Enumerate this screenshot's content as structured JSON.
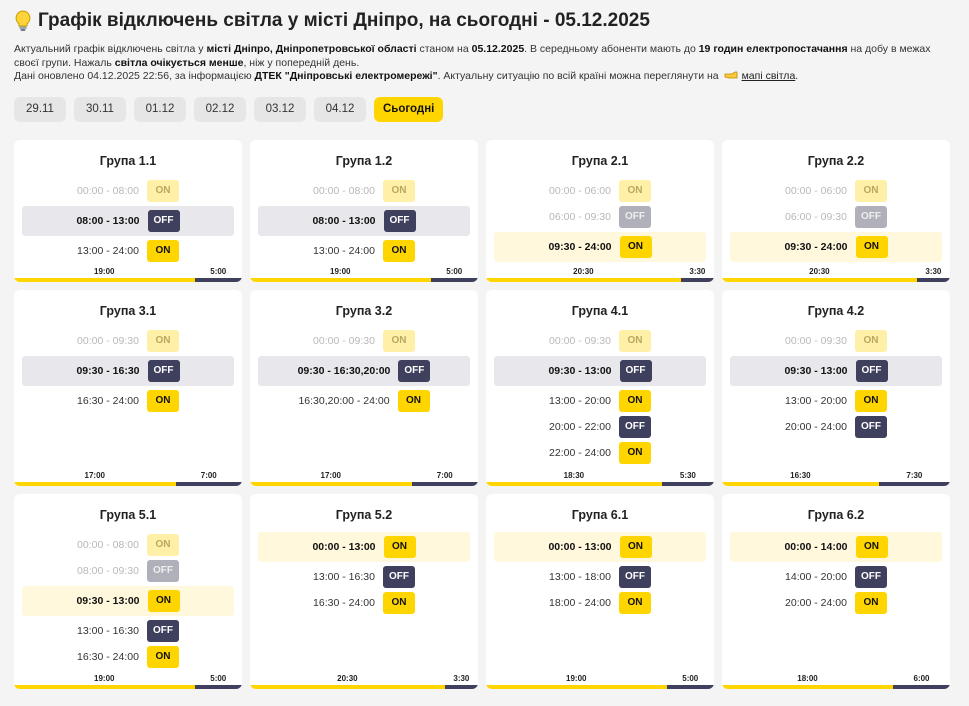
{
  "header": {
    "title": "Графік відключень світла у місті Дніпро, на сьогодні - 05.12.2025"
  },
  "description": {
    "lines": [
      [
        {
          "text": "Актуальний графік відключень світла у "
        },
        {
          "text": "місті Дніпро, Дніпропетровської області",
          "style": "bold"
        },
        {
          "text": " станом на "
        },
        {
          "text": "05.12.2025",
          "style": "bold"
        },
        {
          "text": ". В середньому абоненти мають до "
        },
        {
          "text": "19 годин електропостачання",
          "style": "bold"
        },
        {
          "text": " на добу в межах своєї групи. Нажаль "
        },
        {
          "text": "світла очікується менше",
          "style": "bold"
        },
        {
          "text": ", ніж у попередній день."
        }
      ],
      [
        {
          "text": "Дані оновлено 04.12.2025 22:56, за інформацією "
        },
        {
          "text": "ДТЕК \"Дніпровські електромережі\"",
          "style": "bold"
        },
        {
          "text": ". Актуальну ситуацію по всій країні можна переглянути на "
        },
        {
          "text": "мапі світла",
          "style": "link"
        },
        {
          "text": "."
        }
      ]
    ]
  },
  "tabs": [
    {
      "label": "29.11"
    },
    {
      "label": "30.11"
    },
    {
      "label": "01.12"
    },
    {
      "label": "02.12"
    },
    {
      "label": "03.12"
    },
    {
      "label": "04.12"
    },
    {
      "label": "Сьогодні",
      "active": true
    }
  ],
  "groups": [
    {
      "name": "Група 1.1",
      "on": "19:00",
      "off": "5:00",
      "slots": [
        {
          "time": "00:00 - 08:00",
          "status": "ON",
          "state": "past"
        },
        {
          "time": "08:00 - 13:00",
          "status": "OFF",
          "state": "current"
        },
        {
          "time": "13:00 - 24:00",
          "status": "ON",
          "state": "future"
        }
      ]
    },
    {
      "name": "Група 1.2",
      "on": "19:00",
      "off": "5:00",
      "slots": [
        {
          "time": "00:00 - 08:00",
          "status": "ON",
          "state": "past"
        },
        {
          "time": "08:00 - 13:00",
          "status": "OFF",
          "state": "current"
        },
        {
          "time": "13:00 - 24:00",
          "status": "ON",
          "state": "future"
        }
      ]
    },
    {
      "name": "Група 2.1",
      "on": "20:30",
      "off": "3:30",
      "slots": [
        {
          "time": "00:00 - 06:00",
          "status": "ON",
          "state": "past"
        },
        {
          "time": "06:00 - 09:30",
          "status": "OFF",
          "state": "past"
        },
        {
          "time": "09:30 - 24:00",
          "status": "ON",
          "state": "current"
        }
      ]
    },
    {
      "name": "Група 2.2",
      "on": "20:30",
      "off": "3:30",
      "slots": [
        {
          "time": "00:00 - 06:00",
          "status": "ON",
          "state": "past"
        },
        {
          "time": "06:00 - 09:30",
          "status": "OFF",
          "state": "past"
        },
        {
          "time": "09:30 - 24:00",
          "status": "ON",
          "state": "current"
        }
      ]
    },
    {
      "name": "Група 3.1",
      "on": "17:00",
      "off": "7:00",
      "slots": [
        {
          "time": "00:00 - 09:30",
          "status": "ON",
          "state": "past"
        },
        {
          "time": "09:30 - 16:30",
          "status": "OFF",
          "state": "current"
        },
        {
          "time": "16:30 - 24:00",
          "status": "ON",
          "state": "future"
        }
      ]
    },
    {
      "name": "Група 3.2",
      "on": "17:00",
      "off": "7:00",
      "slots": [
        {
          "time": "00:00 - 09:30",
          "status": "ON",
          "state": "past"
        },
        {
          "time": "09:30 - 16:30,20:00",
          "status": "OFF",
          "state": "current"
        },
        {
          "time": "16:30,20:00 - 24:00",
          "status": "ON",
          "state": "future"
        }
      ]
    },
    {
      "name": "Група 4.1",
      "on": "18:30",
      "off": "5:30",
      "slots": [
        {
          "time": "00:00 - 09:30",
          "status": "ON",
          "state": "past"
        },
        {
          "time": "09:30 - 13:00",
          "status": "OFF",
          "state": "current"
        },
        {
          "time": "13:00 - 20:00",
          "status": "ON",
          "state": "future"
        },
        {
          "time": "20:00 - 22:00",
          "status": "OFF",
          "state": "future"
        },
        {
          "time": "22:00 - 24:00",
          "status": "ON",
          "state": "future"
        }
      ]
    },
    {
      "name": "Група 4.2",
      "on": "16:30",
      "off": "7:30",
      "slots": [
        {
          "time": "00:00 - 09:30",
          "status": "ON",
          "state": "past"
        },
        {
          "time": "09:30 - 13:00",
          "status": "OFF",
          "state": "current"
        },
        {
          "time": "13:00 - 20:00",
          "status": "ON",
          "state": "future"
        },
        {
          "time": "20:00 - 24:00",
          "status": "OFF",
          "state": "future"
        }
      ]
    },
    {
      "name": "Група 5.1",
      "on": "19:00",
      "off": "5:00",
      "slots": [
        {
          "time": "00:00 - 08:00",
          "status": "ON",
          "state": "past"
        },
        {
          "time": "08:00 - 09:30",
          "status": "OFF",
          "state": "past"
        },
        {
          "time": "09:30 - 13:00",
          "status": "ON",
          "state": "current"
        },
        {
          "time": "13:00 - 16:30",
          "status": "OFF",
          "state": "future"
        },
        {
          "time": "16:30 - 24:00",
          "status": "ON",
          "state": "future"
        }
      ]
    },
    {
      "name": "Група 5.2",
      "on": "20:30",
      "off": "3:30",
      "slots": [
        {
          "time": "00:00 - 13:00",
          "status": "ON",
          "state": "current"
        },
        {
          "time": "13:00 - 16:30",
          "status": "OFF",
          "state": "future"
        },
        {
          "time": "16:30 - 24:00",
          "status": "ON",
          "state": "future"
        }
      ]
    },
    {
      "name": "Група 6.1",
      "on": "19:00",
      "off": "5:00",
      "slots": [
        {
          "time": "00:00 - 13:00",
          "status": "ON",
          "state": "current"
        },
        {
          "time": "13:00 - 18:00",
          "status": "OFF",
          "state": "future"
        },
        {
          "time": "18:00 - 24:00",
          "status": "ON",
          "state": "future"
        }
      ]
    },
    {
      "name": "Група 6.2",
      "on": "18:00",
      "off": "6:00",
      "slots": [
        {
          "time": "00:00 - 14:00",
          "status": "ON",
          "state": "current"
        },
        {
          "time": "14:00 - 20:00",
          "status": "OFF",
          "state": "future"
        },
        {
          "time": "20:00 - 24:00",
          "status": "ON",
          "state": "future"
        }
      ]
    }
  ]
}
